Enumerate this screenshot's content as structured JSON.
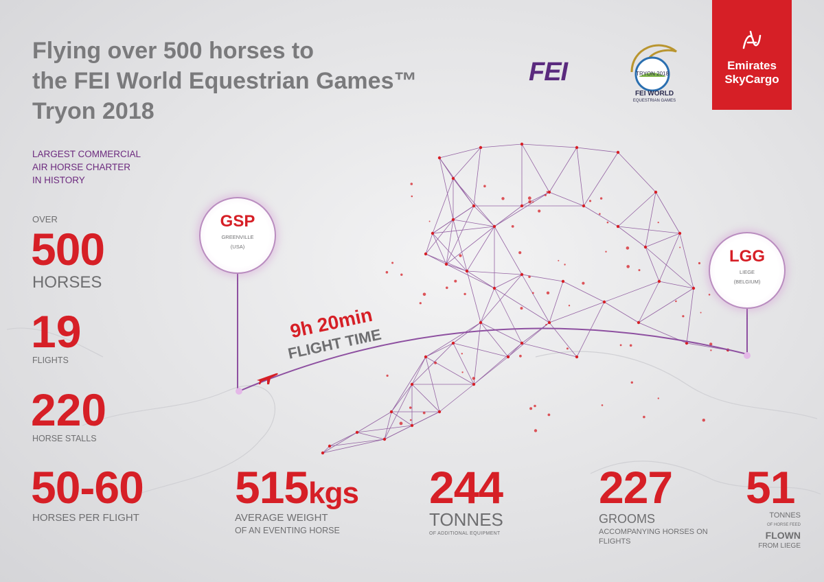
{
  "title": {
    "line1": "Flying over 500 horses to",
    "line2": "the FEI World Equestrian Games™",
    "line3": "Tryon 2018"
  },
  "subtitle": {
    "line1": "LARGEST COMMERCIAL",
    "line2": "AIR HORSE CHARTER",
    "line3": "IN HISTORY"
  },
  "stats": {
    "horses": {
      "prefix": "OVER",
      "value": "500",
      "label": "HORSES"
    },
    "flights": {
      "value": "19",
      "label": "FLIGHTS"
    },
    "stalls": {
      "value": "220",
      "label": "HORSE STALLS"
    },
    "per_flight": {
      "value": "50-60",
      "label": "HORSES PER FLIGHT"
    },
    "weight": {
      "value": "515",
      "unit": "kgs",
      "label1": "AVERAGE WEIGHT",
      "label2": "OF AN EVENTING HORSE"
    },
    "equipment": {
      "value": "244",
      "label1": "TONNES",
      "label2": "OF ADDITIONAL EQUIPMENT"
    },
    "grooms": {
      "value": "227",
      "label1": "GROOMS",
      "label2": "ACCOMPANYING HORSES ON FLIGHTS"
    },
    "feed": {
      "value": "51",
      "label1": "TONNES",
      "label2": "OF HORSE FEED",
      "label3": "FLOWN",
      "label4": "FROM LIEGE"
    }
  },
  "route": {
    "origin": {
      "code": "GSP",
      "city": "GREENVILLE",
      "country": "(USA)"
    },
    "destination": {
      "code": "LGG",
      "city": "LIEGE",
      "country": "(BELGIUM)"
    },
    "flight_time": "9h 20min",
    "flight_time_label": "FLIGHT TIME"
  },
  "logos": {
    "fei": "FEI",
    "weg_line1": "FEI WORLD",
    "weg_line2": "EQUESTRIAN GAMES",
    "weg_badge": "TRYON 2018",
    "emirates_line1": "Emirates",
    "emirates_line2": "SkyCargo"
  },
  "colors": {
    "accent_red": "#d61f26",
    "purple": "#6c2a7e",
    "grey_text": "#6e6e70"
  }
}
